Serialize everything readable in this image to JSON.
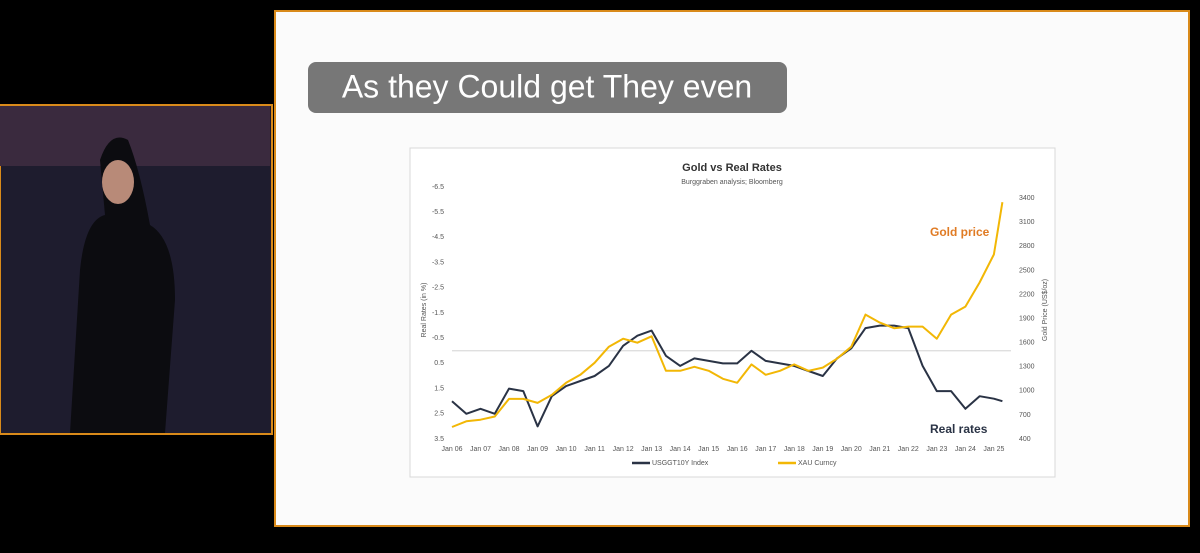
{
  "caption": "As they Could get They even",
  "chart_data": {
    "type": "line",
    "title": "Gold vs Real Rates",
    "subtitle": "Burggraben analysis; Bloomberg",
    "y_label": "Real Rates (in %)",
    "y2_label": "Gold Price (US$/oz)",
    "annotations": [
      {
        "text": "Gold price",
        "color": "#e07b24"
      },
      {
        "text": "Real rates",
        "color": "#2a3345"
      }
    ],
    "x": [
      2006,
      2006.5,
      2007,
      2007.5,
      2008,
      2008.5,
      2009,
      2009.5,
      2010,
      2010.5,
      2011,
      2011.5,
      2012,
      2012.5,
      2013,
      2013.5,
      2014,
      2014.5,
      2015,
      2015.5,
      2016,
      2016.5,
      2017,
      2017.5,
      2018,
      2018.5,
      2019,
      2019.5,
      2020,
      2020.5,
      2021,
      2021.5,
      2022,
      2022.5,
      2023,
      2023.5,
      2024,
      2024.5,
      2025,
      2025.3
    ],
    "xlim": [
      2006,
      2025.6
    ],
    "xticks": [
      {
        "value": 2006,
        "label": "Jan 06"
      },
      {
        "value": 2007,
        "label": "Jan 07"
      },
      {
        "value": 2008,
        "label": "Jan 08"
      },
      {
        "value": 2009,
        "label": "Jan 09"
      },
      {
        "value": 2010,
        "label": "Jan 10"
      },
      {
        "value": 2011,
        "label": "Jan 11"
      },
      {
        "value": 2012,
        "label": "Jan 12"
      },
      {
        "value": 2013,
        "label": "Jan 13"
      },
      {
        "value": 2014,
        "label": "Jan 14"
      },
      {
        "value": 2015,
        "label": "Jan 15"
      },
      {
        "value": 2016,
        "label": "Jan 16"
      },
      {
        "value": 2017,
        "label": "Jan 17"
      },
      {
        "value": 2018,
        "label": "Jan 18"
      },
      {
        "value": 2019,
        "label": "Jan 19"
      },
      {
        "value": 2020,
        "label": "Jan 20"
      },
      {
        "value": 2021,
        "label": "Jan 21"
      },
      {
        "value": 2022,
        "label": "Jan 22"
      },
      {
        "value": 2023,
        "label": "Jan 23"
      },
      {
        "value": 2024,
        "label": "Jan 24"
      },
      {
        "value": 2025,
        "label": "Jan 25"
      }
    ],
    "ylim": [
      3.5,
      -6.5
    ],
    "yticks": [
      -6.5,
      -5.5,
      -4.5,
      -3.5,
      -2.5,
      -1.5,
      -0.5,
      0.5,
      1.5,
      2.5,
      3.5
    ],
    "y2lim": [
      400,
      3540
    ],
    "y2ticks": [
      400,
      700,
      1000,
      1300,
      1600,
      1900,
      2200,
      2500,
      2800,
      3100,
      3400
    ],
    "series": [
      {
        "name": "USGGT10Y Index",
        "color": "#2a3345",
        "axis": "y",
        "values": [
          2.0,
          2.5,
          2.3,
          2.5,
          1.5,
          1.6,
          3.0,
          1.8,
          1.4,
          1.2,
          1.0,
          0.6,
          -0.2,
          -0.6,
          -0.8,
          0.2,
          0.6,
          0.3,
          0.4,
          0.5,
          0.5,
          0.0,
          0.4,
          0.5,
          0.6,
          0.8,
          1.0,
          0.3,
          -0.1,
          -0.9,
          -1.0,
          -1.0,
          -0.9,
          0.6,
          1.6,
          1.6,
          2.3,
          1.8,
          1.9,
          2.0
        ]
      },
      {
        "name": "XAU Curncy",
        "color": "#f2b705",
        "axis": "y2",
        "values": [
          550,
          620,
          640,
          680,
          900,
          900,
          850,
          950,
          1100,
          1200,
          1350,
          1550,
          1650,
          1600,
          1680,
          1250,
          1250,
          1300,
          1250,
          1150,
          1100,
          1330,
          1200,
          1250,
          1330,
          1250,
          1290,
          1400,
          1550,
          1950,
          1850,
          1780,
          1800,
          1800,
          1650,
          1950,
          2050,
          2350,
          2700,
          3350
        ]
      }
    ]
  }
}
